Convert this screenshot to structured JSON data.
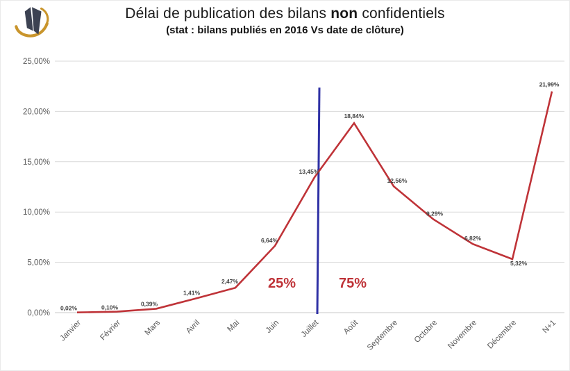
{
  "header": {
    "title_pre": "Délai de publication des bilans ",
    "title_bold": "non",
    "title_post": " confidentiels",
    "subtitle": "(stat : bilans publiés en 2016 Vs date de clôture)"
  },
  "chart_data": {
    "type": "line",
    "title": "Délai de publication des bilans non confidentiels",
    "subtitle": "(stat : bilans publiés en 2016 Vs date de clôture)",
    "categories": [
      "Janvier",
      "Février",
      "Mars",
      "Avril",
      "Mai",
      "Juin",
      "Juillet",
      "Août",
      "Septembre",
      "Octobre",
      "Novembre",
      "Décembre",
      "N+1"
    ],
    "values": [
      0.02,
      0.1,
      0.39,
      1.41,
      2.47,
      6.64,
      13.45,
      18.84,
      12.56,
      9.29,
      6.82,
      5.32,
      21.99
    ],
    "point_labels": [
      "0,02%",
      "0,10%",
      "0,39%",
      "1,41%",
      "2,47%",
      "6,64%",
      "13,45%",
      "18,84%",
      "12,56%",
      "9,29%",
      "6,82%",
      "5,32%",
      "21,99%"
    ],
    "xlabel": "",
    "ylabel": "",
    "ylim": [
      0,
      25
    ],
    "y_tick_values": [
      0,
      5,
      10,
      15,
      20,
      25
    ],
    "y_tick_labels": [
      "0,00%",
      "5,00%",
      "10,00%",
      "15,00%",
      "20,00%",
      "25,00%"
    ],
    "grid": true,
    "legend_position": "none",
    "series_color": "#bf3338",
    "divider": {
      "category": "Juillet",
      "color": "#2f31a5",
      "label_left": "25%",
      "label_right": "75%",
      "label_color": "#bf3338"
    }
  },
  "colors": {
    "grid": "#d9d9d9",
    "axis": "#c8c8c8",
    "tick_text": "#595959",
    "point_label_text": "#3f3f3f",
    "logo_gold": "#c9952c",
    "logo_dark": "#3c4252"
  }
}
